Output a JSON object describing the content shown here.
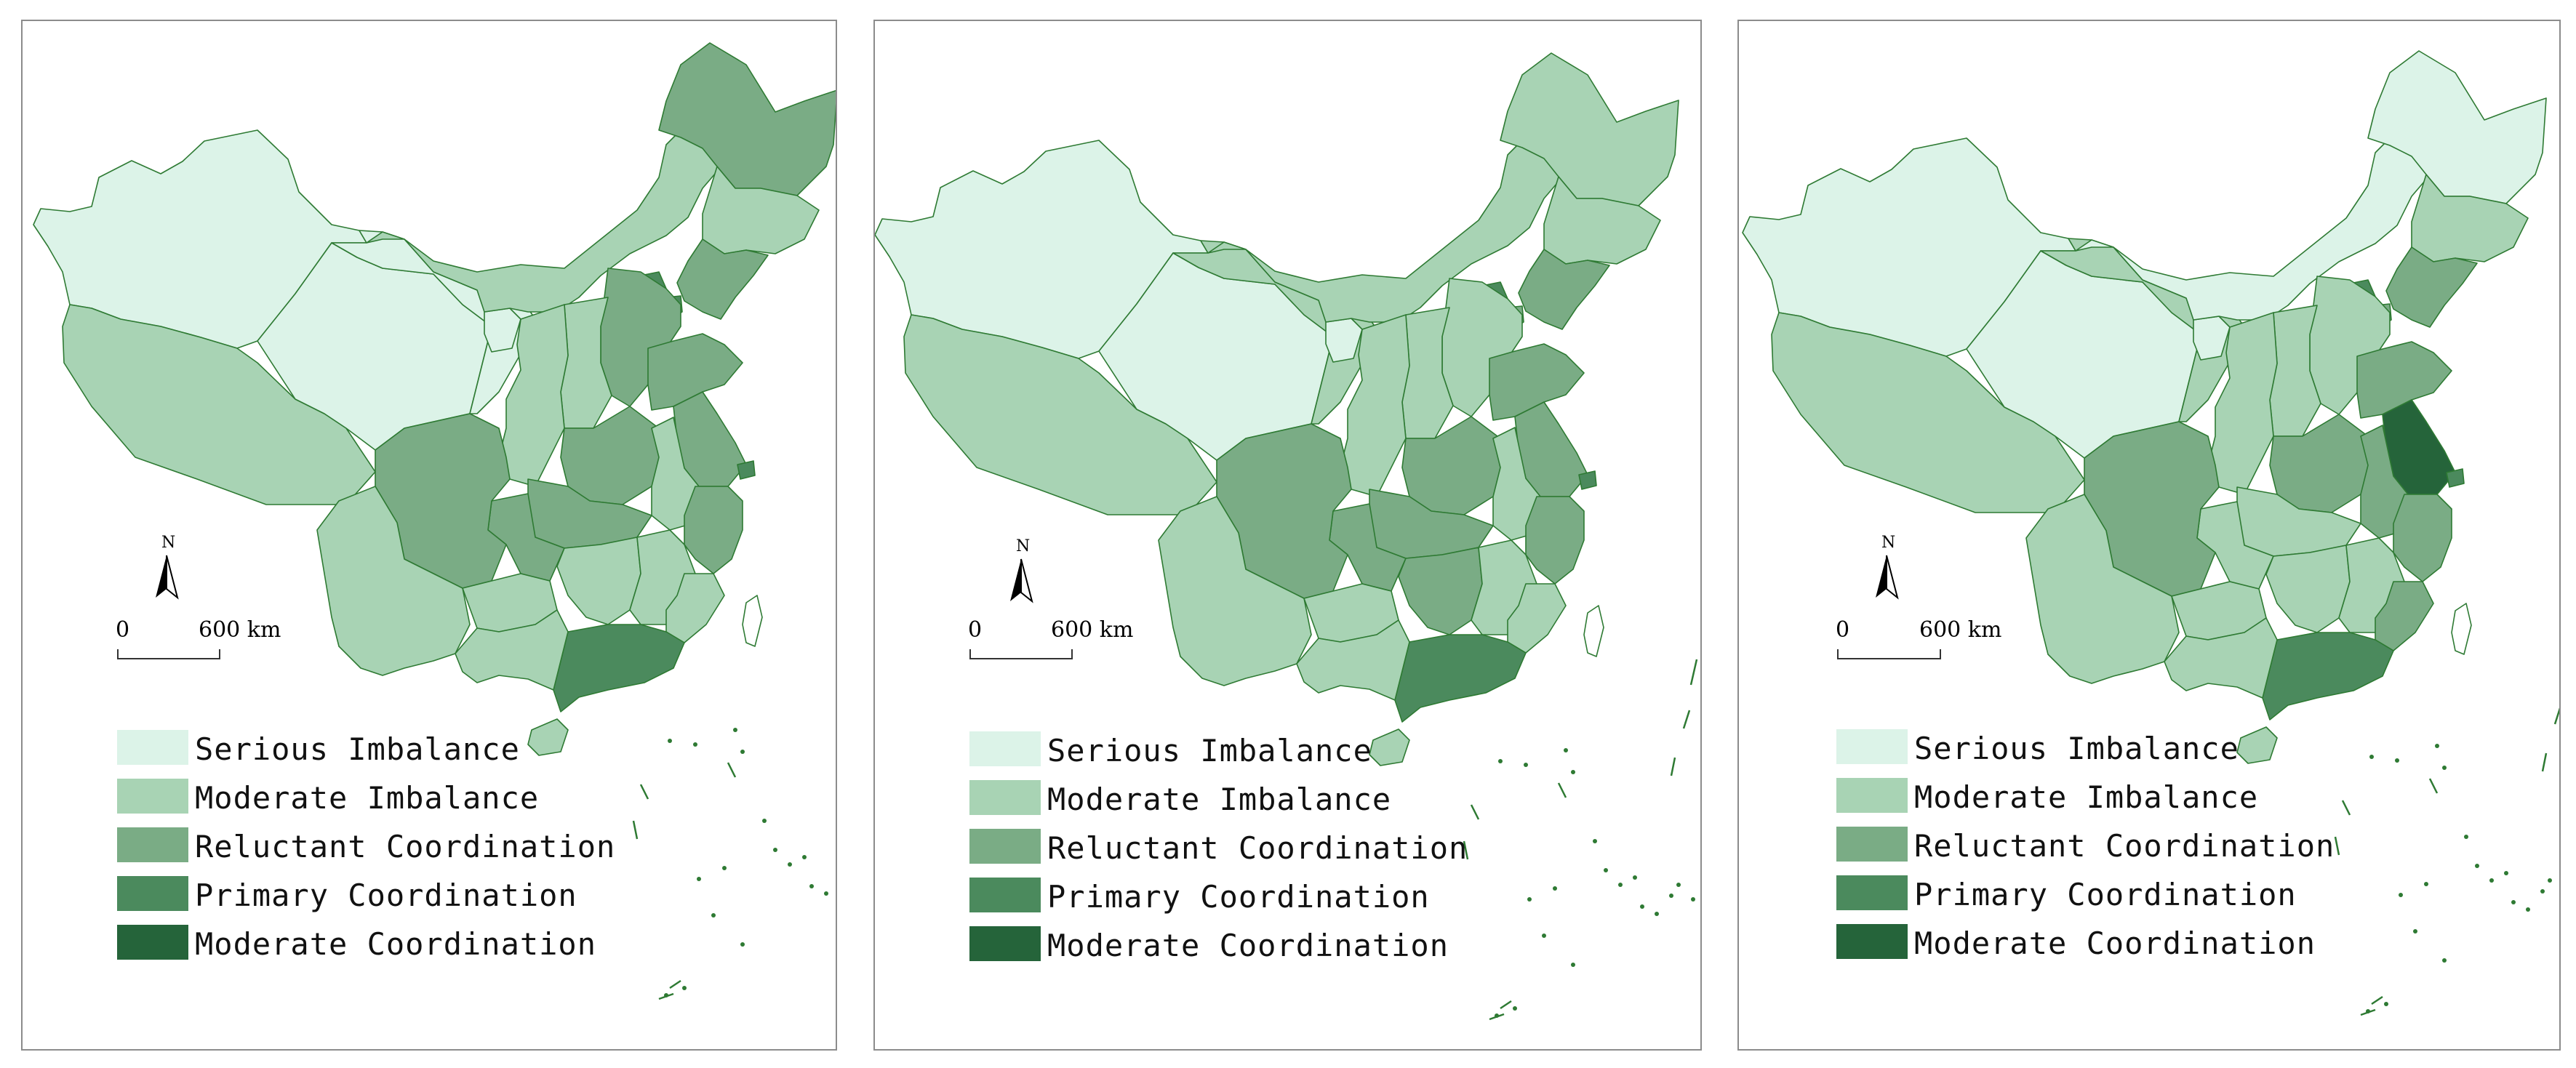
{
  "legend": [
    {
      "label": "Serious Imbalance",
      "color": "#dcf3e8"
    },
    {
      "label": "Moderate Imbalance",
      "color": "#a8d3b4"
    },
    {
      "label": "Reluctant Coordination",
      "color": "#7aac85"
    },
    {
      "label": "Primary Coordination",
      "color": "#4b8a5d"
    },
    {
      "label": "Moderate Coordination",
      "color": "#25643a"
    }
  ],
  "scale": {
    "zero": "0",
    "distance": "600 km"
  },
  "north_label": "N",
  "colors": {
    "border": "#2e7a33",
    "frame": "#8c8c8c"
  },
  "maps": [
    {
      "classes": {
        "xinjiang": 0,
        "tibet": 1,
        "qinghai": 0,
        "gansu": 0,
        "ningxia": 0,
        "inner_mongolia": 1,
        "heilongjiang": 2,
        "jilin": 1,
        "liaoning": 2,
        "beijing": 3,
        "tianjin": 3,
        "hebei": 2,
        "shanxi": 1,
        "shaanxi": 1,
        "henan": 2,
        "shandong": 2,
        "jiangsu": 2,
        "shanghai": 3,
        "anhui": 1,
        "hubei": 2,
        "chongqing": 2,
        "sichuan": 2,
        "yunnan": 1,
        "guizhou": 1,
        "hunan": 1,
        "jiangxi": 1,
        "zhejiang": 2,
        "fujian": 1,
        "guangdong": 3,
        "guangxi": 1,
        "hainan": 1,
        "taiwan": -1
      }
    },
    {
      "classes": {
        "xinjiang": 0,
        "tibet": 1,
        "qinghai": 0,
        "gansu": 1,
        "ningxia": 0,
        "inner_mongolia": 1,
        "heilongjiang": 1,
        "jilin": 1,
        "liaoning": 2,
        "beijing": 3,
        "tianjin": 2,
        "hebei": 1,
        "shanxi": 1,
        "shaanxi": 1,
        "henan": 2,
        "shandong": 2,
        "jiangsu": 2,
        "shanghai": 3,
        "anhui": 1,
        "hubei": 2,
        "chongqing": 2,
        "sichuan": 2,
        "yunnan": 1,
        "guizhou": 1,
        "hunan": 2,
        "jiangxi": 1,
        "zhejiang": 2,
        "fujian": 1,
        "guangdong": 3,
        "guangxi": 1,
        "hainan": 1,
        "taiwan": -1
      }
    },
    {
      "classes": {
        "xinjiang": 0,
        "tibet": 1,
        "qinghai": 0,
        "gansu": 1,
        "ningxia": 0,
        "inner_mongolia": 0,
        "heilongjiang": 0,
        "jilin": 1,
        "liaoning": 2,
        "beijing": 3,
        "tianjin": 2,
        "hebei": 1,
        "shanxi": 1,
        "shaanxi": 1,
        "henan": 2,
        "shandong": 2,
        "jiangsu": 4,
        "shanghai": 3,
        "anhui": 2,
        "hubei": 1,
        "chongqing": 1,
        "sichuan": 2,
        "yunnan": 1,
        "guizhou": 1,
        "hunan": 1,
        "jiangxi": 1,
        "zhejiang": 2,
        "fujian": 2,
        "guangdong": 3,
        "guangxi": 1,
        "hainan": 1,
        "taiwan": -1
      }
    }
  ]
}
